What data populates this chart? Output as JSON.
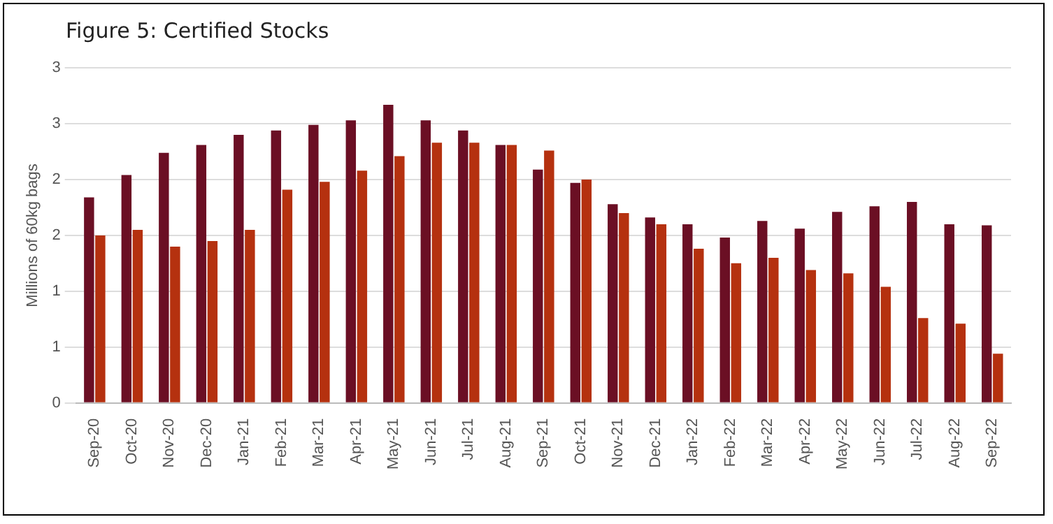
{
  "chart_data": {
    "type": "bar",
    "title": "Figure 5: Certified Stocks",
    "ylabel": "Millions of 60kg bags",
    "categories": [
      "Sep-20",
      "Oct-20",
      "Nov-20",
      "Dec-20",
      "Jan-21",
      "Feb-21",
      "Mar-21",
      "Apr-21",
      "May-21",
      "Jun-21",
      "Jul-21",
      "Aug-21",
      "Sep-21",
      "Oct-21",
      "Nov-21",
      "Dec-21",
      "Jan-22",
      "Feb-22",
      "Mar-22",
      "Apr-22",
      "May-22",
      "Jun-22",
      "Jul-22",
      "Aug-22",
      "Sep-22"
    ],
    "series": [
      {
        "color": "#6b0f24",
        "values": [
          1.84,
          2.04,
          2.24,
          2.31,
          2.4,
          2.44,
          2.49,
          2.53,
          2.67,
          2.53,
          2.44,
          2.31,
          2.09,
          1.97,
          1.78,
          1.66,
          1.6,
          1.48,
          1.63,
          1.56,
          1.71,
          1.76,
          1.8,
          1.6,
          1.59
        ]
      },
      {
        "color": "#b5310f",
        "values": [
          1.5,
          1.55,
          1.4,
          1.45,
          1.55,
          1.91,
          1.98,
          2.08,
          2.21,
          2.33,
          2.33,
          2.31,
          2.26,
          2.0,
          1.7,
          1.6,
          1.38,
          1.25,
          1.3,
          1.19,
          1.16,
          1.04,
          0.76,
          0.71,
          0.44
        ]
      }
    ],
    "ylim": [
      0,
      3
    ],
    "yticks": [
      {
        "value": 0,
        "label": "0"
      },
      {
        "value": 0.5,
        "label": "1"
      },
      {
        "value": 1,
        "label": "1"
      },
      {
        "value": 1.5,
        "label": "2"
      },
      {
        "value": 2,
        "label": "2"
      },
      {
        "value": 2.5,
        "label": "3"
      },
      {
        "value": 3,
        "label": "3"
      }
    ],
    "grid": "y",
    "legend": false
  }
}
